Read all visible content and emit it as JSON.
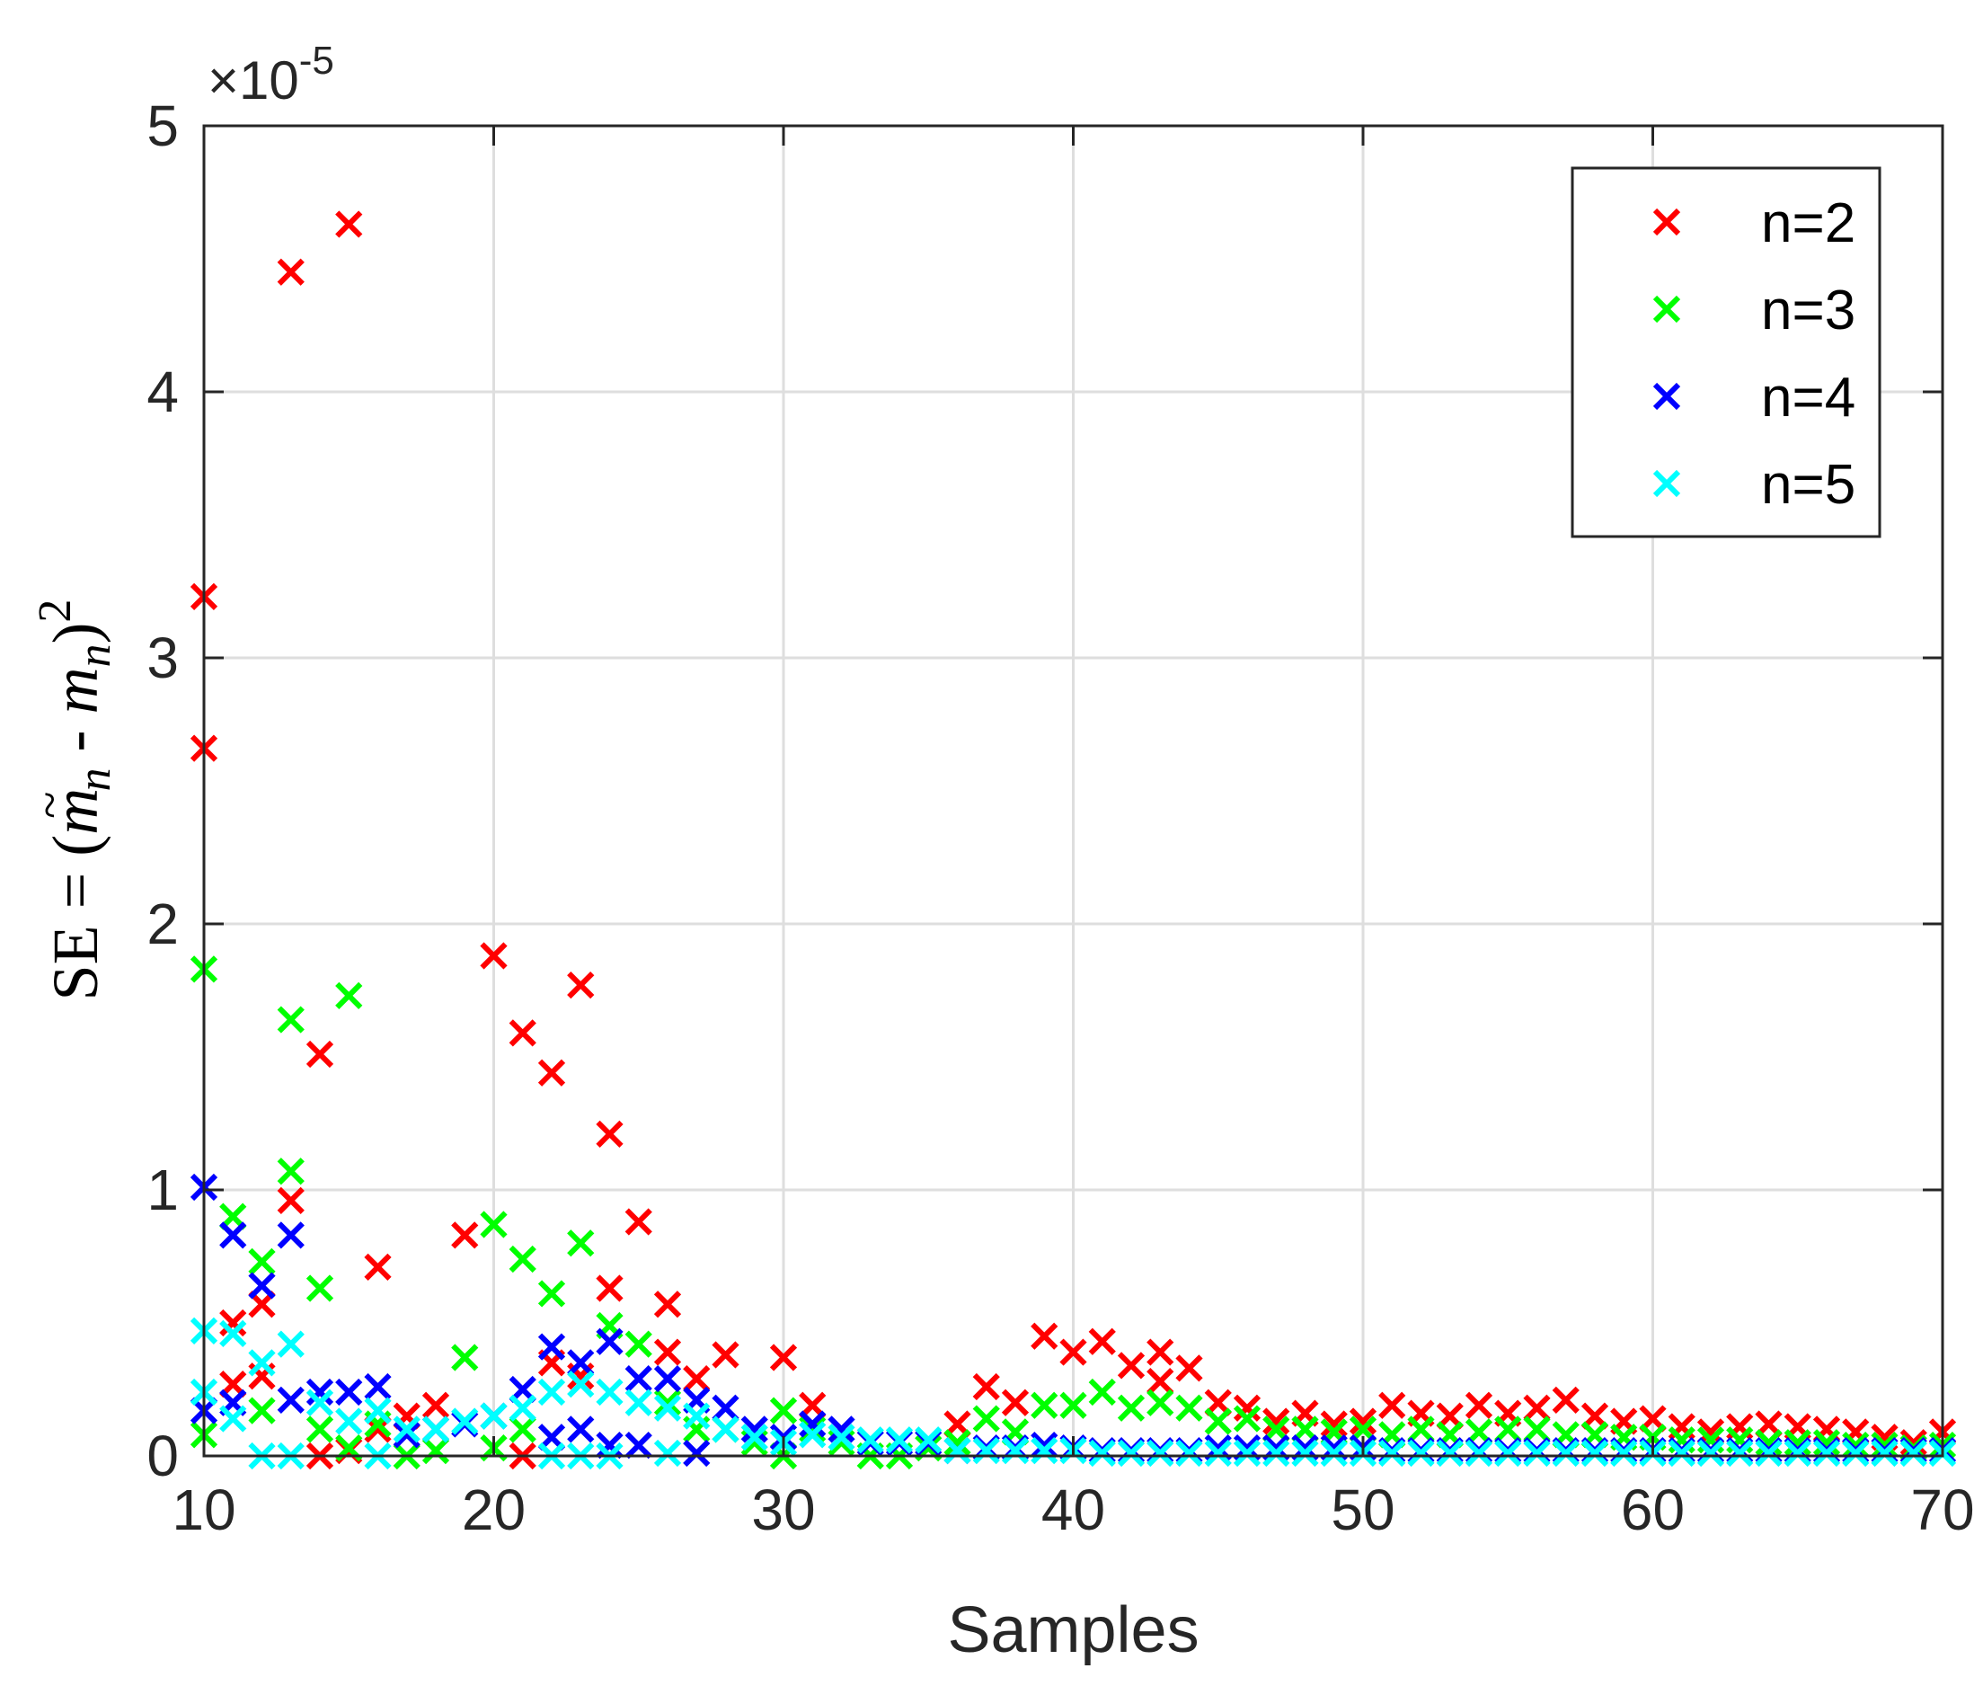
{
  "chart_data": {
    "type": "scatter",
    "title": "",
    "xlabel": "Samples",
    "ylabel_parts": [
      "SE = (",
      "m",
      "~",
      "n",
      " - ",
      "m",
      "n",
      ")",
      "2"
    ],
    "xlim": [
      10,
      70
    ],
    "ylim": [
      0,
      5
    ],
    "y_exponent_base": "×10",
    "y_exponent_power": "-5",
    "xticks": [
      "10",
      "20",
      "30",
      "40",
      "50",
      "60",
      "70"
    ],
    "yticks": [
      "0",
      "1",
      "2",
      "3",
      "4",
      "5"
    ],
    "grid": true,
    "legend_position": "top-right",
    "marker": "x",
    "series": [
      {
        "name": "n=2",
        "color": "#ff0000",
        "points": [
          [
            10,
            3.23
          ],
          [
            10,
            2.66
          ],
          [
            11,
            0.5
          ],
          [
            11,
            0.27
          ],
          [
            12,
            0.57
          ],
          [
            12,
            0.3
          ],
          [
            13,
            4.45
          ],
          [
            13,
            0.96
          ],
          [
            14,
            1.51
          ],
          [
            14,
            0.0
          ],
          [
            15,
            4.63
          ],
          [
            15,
            0.02
          ],
          [
            16,
            0.71
          ],
          [
            16,
            0.1
          ],
          [
            17,
            0.15
          ],
          [
            18,
            0.19
          ],
          [
            19,
            0.83
          ],
          [
            20,
            1.88
          ],
          [
            21,
            1.59
          ],
          [
            21,
            0.0
          ],
          [
            22,
            1.44
          ],
          [
            22,
            0.35
          ],
          [
            23,
            1.77
          ],
          [
            23,
            0.3
          ],
          [
            24,
            1.21
          ],
          [
            24,
            0.63
          ],
          [
            25,
            0.88
          ],
          [
            26,
            0.57
          ],
          [
            26,
            0.39
          ],
          [
            27,
            0.29
          ],
          [
            28,
            0.38
          ],
          [
            30,
            0.37
          ],
          [
            31,
            0.19
          ],
          [
            36,
            0.12
          ],
          [
            37,
            0.26
          ],
          [
            38,
            0.2
          ],
          [
            39,
            0.45
          ],
          [
            40,
            0.39
          ],
          [
            41,
            0.43
          ],
          [
            42,
            0.34
          ],
          [
            43,
            0.39
          ],
          [
            43,
            0.28
          ],
          [
            44,
            0.33
          ],
          [
            45,
            0.2
          ],
          [
            46,
            0.18
          ],
          [
            47,
            0.13
          ],
          [
            48,
            0.16
          ],
          [
            49,
            0.12
          ],
          [
            50,
            0.13
          ],
          [
            51,
            0.19
          ],
          [
            52,
            0.16
          ],
          [
            53,
            0.15
          ],
          [
            54,
            0.19
          ],
          [
            55,
            0.16
          ],
          [
            56,
            0.18
          ],
          [
            57,
            0.21
          ],
          [
            58,
            0.15
          ],
          [
            59,
            0.13
          ],
          [
            60,
            0.14
          ],
          [
            61,
            0.11
          ],
          [
            62,
            0.09
          ],
          [
            63,
            0.11
          ],
          [
            64,
            0.12
          ],
          [
            65,
            0.11
          ],
          [
            66,
            0.1
          ],
          [
            67,
            0.09
          ],
          [
            68,
            0.07
          ],
          [
            69,
            0.05
          ],
          [
            70,
            0.09
          ]
        ]
      },
      {
        "name": "n=3",
        "color": "#00ff00",
        "points": [
          [
            10,
            1.83
          ],
          [
            10,
            0.08
          ],
          [
            11,
            0.9
          ],
          [
            12,
            0.73
          ],
          [
            12,
            0.17
          ],
          [
            13,
            1.64
          ],
          [
            13,
            1.07
          ],
          [
            14,
            0.63
          ],
          [
            14,
            0.1
          ],
          [
            15,
            1.73
          ],
          [
            15,
            0.03
          ],
          [
            16,
            0.12
          ],
          [
            17,
            0.0
          ],
          [
            18,
            0.02
          ],
          [
            19,
            0.37
          ],
          [
            20,
            0.87
          ],
          [
            20,
            0.03
          ],
          [
            21,
            0.74
          ],
          [
            21,
            0.1
          ],
          [
            22,
            0.61
          ],
          [
            23,
            0.8
          ],
          [
            24,
            0.49
          ],
          [
            25,
            0.42
          ],
          [
            26,
            0.2
          ],
          [
            27,
            0.1
          ],
          [
            28,
            0.1
          ],
          [
            29,
            0.05
          ],
          [
            30,
            0.17
          ],
          [
            30,
            0.0
          ],
          [
            31,
            0.1
          ],
          [
            32,
            0.05
          ],
          [
            33,
            0.0
          ],
          [
            34,
            0.0
          ],
          [
            35,
            0.03
          ],
          [
            36,
            0.05
          ],
          [
            37,
            0.14
          ],
          [
            38,
            0.09
          ],
          [
            39,
            0.19
          ],
          [
            40,
            0.19
          ],
          [
            41,
            0.24
          ],
          [
            42,
            0.18
          ],
          [
            43,
            0.2
          ],
          [
            44,
            0.18
          ],
          [
            45,
            0.13
          ],
          [
            46,
            0.14
          ],
          [
            47,
            0.1
          ],
          [
            48,
            0.1
          ],
          [
            49,
            0.09
          ],
          [
            50,
            0.1
          ],
          [
            51,
            0.08
          ],
          [
            52,
            0.1
          ],
          [
            53,
            0.08
          ],
          [
            54,
            0.09
          ],
          [
            55,
            0.1
          ],
          [
            56,
            0.1
          ],
          [
            57,
            0.08
          ],
          [
            58,
            0.08
          ],
          [
            59,
            0.07
          ],
          [
            60,
            0.07
          ],
          [
            61,
            0.06
          ],
          [
            62,
            0.06
          ],
          [
            63,
            0.06
          ],
          [
            64,
            0.05
          ],
          [
            65,
            0.05
          ],
          [
            66,
            0.05
          ],
          [
            67,
            0.04
          ],
          [
            68,
            0.04
          ],
          [
            69,
            0.03
          ],
          [
            70,
            0.04
          ]
        ]
      },
      {
        "name": "n=4",
        "color": "#0000ff",
        "points": [
          [
            10,
            1.01
          ],
          [
            10,
            0.17
          ],
          [
            11,
            0.83
          ],
          [
            11,
            0.2
          ],
          [
            12,
            0.64
          ],
          [
            13,
            0.83
          ],
          [
            13,
            0.21
          ],
          [
            14,
            0.24
          ],
          [
            15,
            0.24
          ],
          [
            16,
            0.26
          ],
          [
            17,
            0.08
          ],
          [
            18,
            0.1
          ],
          [
            19,
            0.12
          ],
          [
            20,
            0.15
          ],
          [
            21,
            0.25
          ],
          [
            22,
            0.41
          ],
          [
            22,
            0.07
          ],
          [
            23,
            0.35
          ],
          [
            23,
            0.1
          ],
          [
            24,
            0.43
          ],
          [
            24,
            0.04
          ],
          [
            25,
            0.29
          ],
          [
            25,
            0.04
          ],
          [
            26,
            0.29
          ],
          [
            27,
            0.21
          ],
          [
            27,
            0.01
          ],
          [
            28,
            0.18
          ],
          [
            29,
            0.1
          ],
          [
            30,
            0.07
          ],
          [
            31,
            0.12
          ],
          [
            32,
            0.1
          ],
          [
            33,
            0.05
          ],
          [
            34,
            0.05
          ],
          [
            35,
            0.05
          ],
          [
            36,
            0.02
          ],
          [
            37,
            0.03
          ],
          [
            38,
            0.03
          ],
          [
            39,
            0.04
          ],
          [
            40,
            0.03
          ],
          [
            41,
            0.02
          ],
          [
            42,
            0.02
          ],
          [
            43,
            0.02
          ],
          [
            44,
            0.02
          ],
          [
            45,
            0.03
          ],
          [
            46,
            0.03
          ],
          [
            47,
            0.03
          ],
          [
            48,
            0.03
          ],
          [
            49,
            0.03
          ],
          [
            50,
            0.03
          ],
          [
            51,
            0.02
          ],
          [
            52,
            0.02
          ],
          [
            53,
            0.02
          ],
          [
            54,
            0.02
          ],
          [
            55,
            0.02
          ],
          [
            56,
            0.02
          ],
          [
            57,
            0.02
          ],
          [
            58,
            0.02
          ],
          [
            59,
            0.02
          ],
          [
            60,
            0.02
          ],
          [
            61,
            0.02
          ],
          [
            62,
            0.02
          ],
          [
            63,
            0.02
          ],
          [
            64,
            0.02
          ],
          [
            65,
            0.02
          ],
          [
            66,
            0.02
          ],
          [
            67,
            0.02
          ],
          [
            68,
            0.02
          ],
          [
            69,
            0.02
          ],
          [
            70,
            0.02
          ]
        ]
      },
      {
        "name": "n=5",
        "color": "#00ffff",
        "points": [
          [
            10,
            0.47
          ],
          [
            10,
            0.24
          ],
          [
            11,
            0.46
          ],
          [
            11,
            0.14
          ],
          [
            12,
            0.35
          ],
          [
            12,
            0.0
          ],
          [
            13,
            0.42
          ],
          [
            13,
            0.0
          ],
          [
            14,
            0.2
          ],
          [
            15,
            0.13
          ],
          [
            16,
            0.17
          ],
          [
            16,
            0.0
          ],
          [
            17,
            0.1
          ],
          [
            18,
            0.1
          ],
          [
            19,
            0.13
          ],
          [
            20,
            0.15
          ],
          [
            21,
            0.18
          ],
          [
            22,
            0.24
          ],
          [
            22,
            0.0
          ],
          [
            23,
            0.27
          ],
          [
            23,
            0.0
          ],
          [
            24,
            0.24
          ],
          [
            24,
            0.0
          ],
          [
            25,
            0.2
          ],
          [
            26,
            0.18
          ],
          [
            26,
            0.01
          ],
          [
            27,
            0.15
          ],
          [
            28,
            0.1
          ],
          [
            29,
            0.07
          ],
          [
            30,
            0.05
          ],
          [
            31,
            0.08
          ],
          [
            32,
            0.07
          ],
          [
            33,
            0.06
          ],
          [
            34,
            0.06
          ],
          [
            35,
            0.06
          ],
          [
            36,
            0.02
          ],
          [
            37,
            0.02
          ],
          [
            38,
            0.02
          ],
          [
            39,
            0.02
          ],
          [
            40,
            0.02
          ],
          [
            41,
            0.01
          ],
          [
            42,
            0.01
          ],
          [
            43,
            0.01
          ],
          [
            44,
            0.01
          ],
          [
            45,
            0.01
          ],
          [
            46,
            0.01
          ],
          [
            47,
            0.01
          ],
          [
            48,
            0.01
          ],
          [
            49,
            0.01
          ],
          [
            50,
            0.01
          ],
          [
            51,
            0.01
          ],
          [
            52,
            0.01
          ],
          [
            53,
            0.01
          ],
          [
            54,
            0.01
          ],
          [
            55,
            0.01
          ],
          [
            56,
            0.01
          ],
          [
            57,
            0.01
          ],
          [
            58,
            0.01
          ],
          [
            59,
            0.01
          ],
          [
            60,
            0.01
          ],
          [
            61,
            0.01
          ],
          [
            62,
            0.01
          ],
          [
            63,
            0.01
          ],
          [
            64,
            0.01
          ],
          [
            65,
            0.01
          ],
          [
            66,
            0.01
          ],
          [
            67,
            0.01
          ],
          [
            68,
            0.01
          ],
          [
            69,
            0.01
          ],
          [
            70,
            0.01
          ]
        ]
      }
    ]
  }
}
